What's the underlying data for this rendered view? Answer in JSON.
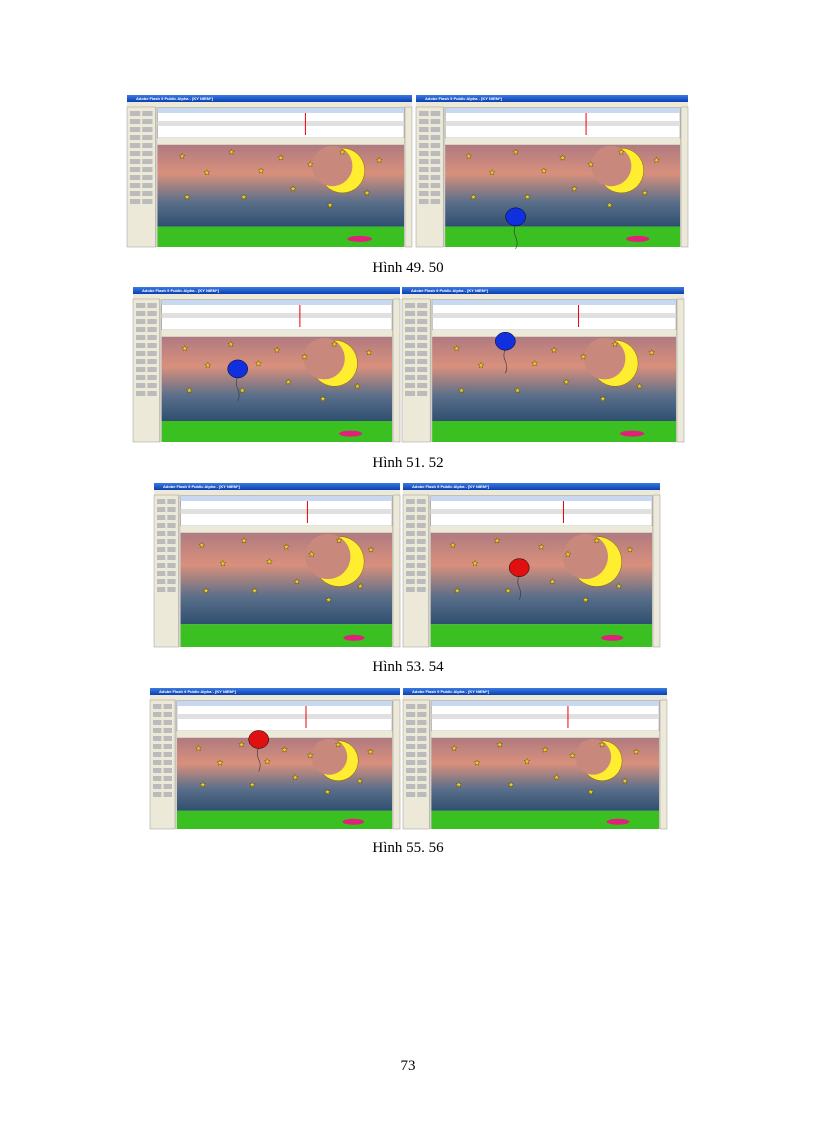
{
  "window_title": "Adobe Flash 9 Public Alpha - [KY NIEM*]",
  "figures": [
    {
      "caption": "Hình 49. 50"
    },
    {
      "caption": "Hình 51. 52"
    },
    {
      "caption": "Hình 53. 54"
    },
    {
      "caption": "Hình 55. 56"
    }
  ],
  "page_number": "73"
}
